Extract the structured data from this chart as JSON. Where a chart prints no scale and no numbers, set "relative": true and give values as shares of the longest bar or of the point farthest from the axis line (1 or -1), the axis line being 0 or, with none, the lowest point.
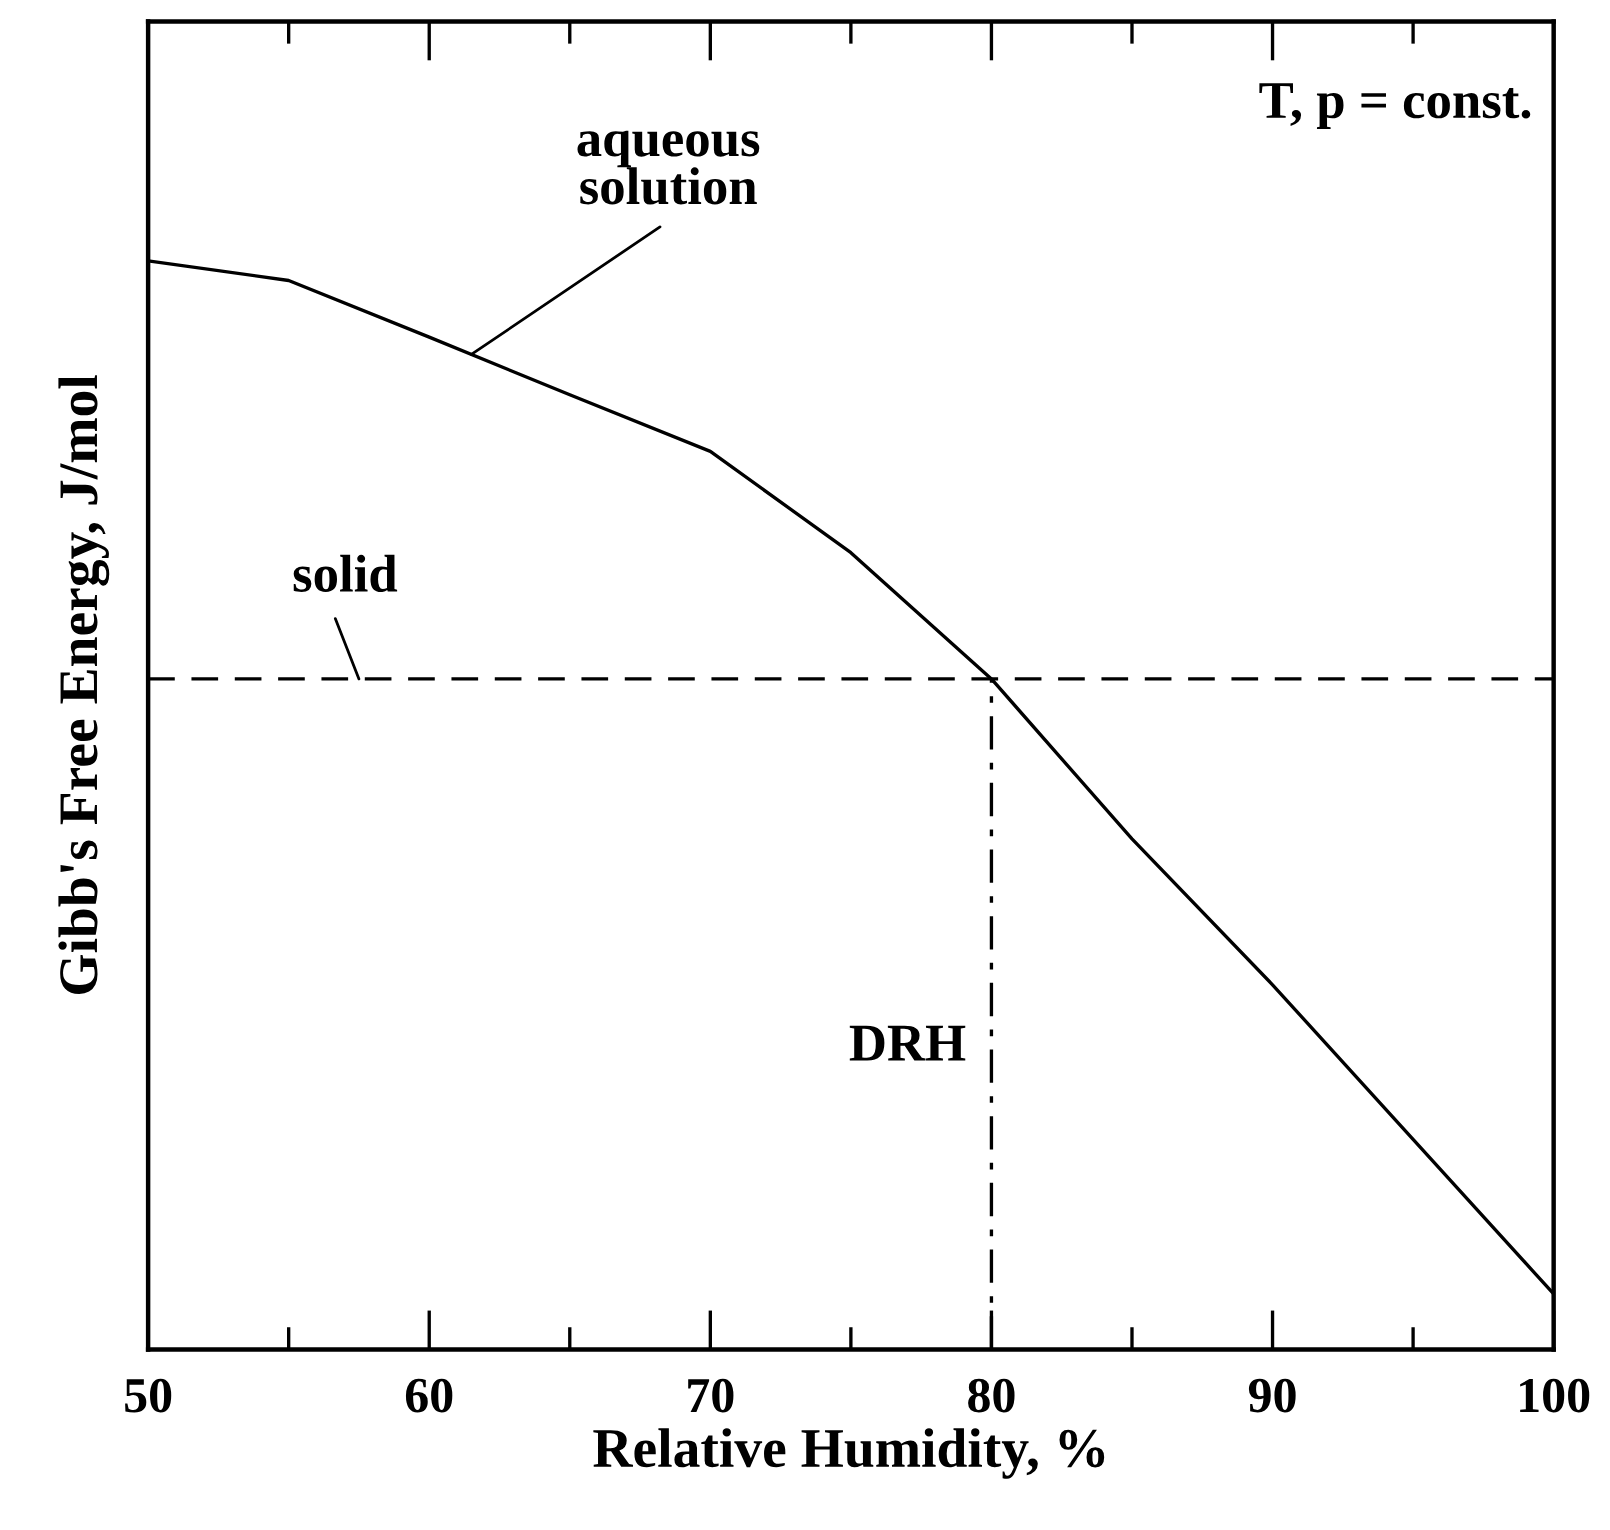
{
  "chart_data": {
    "type": "line",
    "xlabel": "Relative Humidity, %",
    "ylabel": "Gibb's Free Energy, J/mol",
    "relative": true,
    "xlim": [
      50,
      100
    ],
    "xticks": [
      50,
      {
        "value": 55,
        "label": null
      },
      60,
      {
        "value": 65,
        "label": null
      },
      70,
      {
        "value": 75,
        "label": null
      },
      80,
      {
        "value": 85,
        "label": null
      },
      90,
      {
        "value": 95,
        "label": null
      },
      100
    ],
    "tick_labels": "x",
    "grid": false,
    "marker": "none",
    "series": [
      {
        "name": "aqueous\nsolution",
        "color": "#000000",
        "line_style": "solid",
        "x": [
          50,
          55,
          60,
          65,
          70,
          75,
          80,
          85,
          90,
          95,
          100
        ],
        "values": [
          1.0,
          0.982,
          0.93,
          0.877,
          0.825,
          0.732,
          0.616,
          0.469,
          0.335,
          0.193,
          0.051
        ]
      },
      {
        "name": "solid",
        "color": "#000000",
        "line_style": "dashed",
        "x": [
          50,
          100
        ],
        "values": [
          0.616,
          0.616
        ]
      }
    ],
    "ref_lines": [
      {
        "axis": "x",
        "value": 80,
        "label": "DRH",
        "line_style": "dashdot",
        "color": "#000000"
      }
    ],
    "annotations": [
      "T, p = const."
    ]
  }
}
